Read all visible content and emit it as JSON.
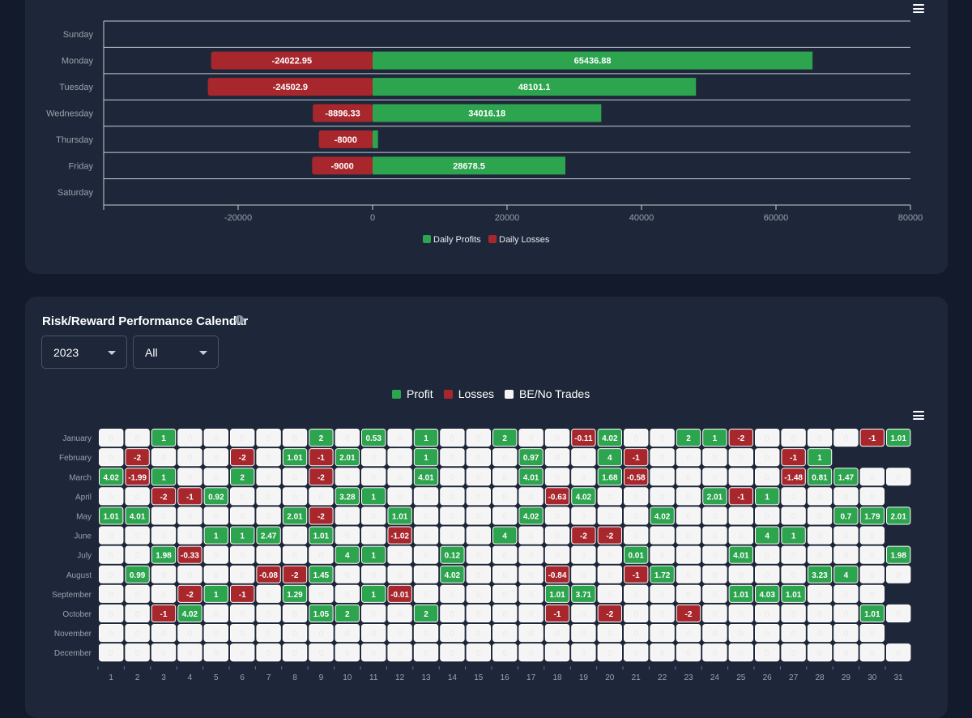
{
  "colors": {
    "profit": "#2da44e",
    "loss": "#a8272d",
    "be": "#f5f5f5",
    "card": "#1e2739",
    "page": "#121a2b"
  },
  "weekday_chart": {
    "menu_icon": "hamburger-menu-icon",
    "chart_data": {
      "type": "bar",
      "orientation": "horizontal",
      "stacked": true,
      "categories": [
        "Sunday",
        "Monday",
        "Tuesday",
        "Wednesday",
        "Thursday",
        "Friday",
        "Saturday"
      ],
      "series": [
        {
          "name": "Daily Profits",
          "values": [
            0,
            65436.88,
            48101.1,
            34016.18,
            800,
            28678.5,
            0
          ],
          "labels": [
            "",
            "65436.88",
            "48101.1",
            "34016.18",
            "",
            "28678.5",
            ""
          ]
        },
        {
          "name": "Daily Losses",
          "values": [
            0,
            -24022.95,
            -24502.9,
            -8896.33,
            -8000,
            -9000,
            0
          ],
          "labels": [
            "",
            "-24022.95",
            "-24502.9",
            "-8896.33",
            "-8000",
            "-9000",
            ""
          ]
        }
      ],
      "xlim": [
        -40000,
        80000
      ],
      "xticks": [
        "-20000",
        "0",
        "20000",
        "40000",
        "60000",
        "80000"
      ],
      "xtick_values": [
        -20000,
        0,
        20000,
        40000,
        60000,
        80000
      ],
      "legend": "bottom",
      "grid": true
    }
  },
  "calendar": {
    "title": "Risk/Reward Performance Calendar",
    "info_icon": "info-icon",
    "year_select": {
      "value": "2023"
    },
    "filter_select": {
      "value": "All"
    },
    "legend": [
      {
        "label": "Profit",
        "color": "#2da44e"
      },
      {
        "label": "Losses",
        "color": "#a8272d"
      },
      {
        "label": "BE/No Trades",
        "color": "#f5f5f5"
      }
    ],
    "menu_icon": "hamburger-menu-icon",
    "chart_data": {
      "type": "heatmap",
      "x": [
        "1",
        "2",
        "3",
        "4",
        "5",
        "6",
        "7",
        "8",
        "9",
        "10",
        "11",
        "12",
        "13",
        "14",
        "15",
        "16",
        "17",
        "18",
        "19",
        "20",
        "21",
        "22",
        "23",
        "24",
        "25",
        "26",
        "27",
        "28",
        "29",
        "30",
        "31"
      ],
      "rows": [
        {
          "month": "January",
          "values": [
            "0",
            "0",
            "1",
            "0",
            "0",
            "0",
            "0",
            "0",
            "2",
            "0",
            "0.53",
            "0",
            "1",
            "0",
            "0",
            "2",
            "0",
            "0",
            "-0.11",
            "4.02",
            "0",
            "0",
            "2",
            "1",
            "-2",
            "0",
            "0",
            "0",
            "0",
            "-1",
            "1.01"
          ]
        },
        {
          "month": "February",
          "values": [
            "0",
            "-2",
            "0",
            "0",
            "0",
            "-2",
            "0",
            "1.01",
            "-1",
            "2.01",
            "0",
            "0",
            "1",
            "0",
            "0",
            "0",
            "0.97",
            "0",
            "0",
            "4",
            "-1",
            "0",
            "0",
            "0",
            "0",
            "0",
            "-1",
            "1"
          ]
        },
        {
          "month": "March",
          "values": [
            "4.02",
            "-1.99",
            "1",
            "0",
            "0",
            "2",
            "0",
            "0",
            "-2",
            "0",
            "0",
            "0",
            "4.01",
            "0",
            "0",
            "0",
            "4.01",
            "0",
            "0",
            "1.68",
            "-0.58",
            "0",
            "0",
            "0",
            "0",
            "0",
            "-1.48",
            "0.81",
            "1.47",
            "0",
            "0"
          ]
        },
        {
          "month": "April",
          "values": [
            "0",
            "0",
            "-2",
            "-1",
            "0.92",
            "0",
            "0",
            "0",
            "0",
            "3.28",
            "1",
            "0",
            "0",
            "0",
            "0",
            "0",
            "0",
            "-0.63",
            "4.02",
            "0",
            "0",
            "0",
            "0",
            "2.01",
            "-1",
            "1",
            "0",
            "0",
            "0",
            "0"
          ]
        },
        {
          "month": "May",
          "values": [
            "1.01",
            "4.01",
            "0",
            "0",
            "0",
            "0",
            "0",
            "2.01",
            "-2",
            "0",
            "0",
            "1.01",
            "0",
            "0",
            "0",
            "0",
            "4.02",
            "0",
            "0",
            "0",
            "0",
            "4.02",
            "0",
            "0",
            "0",
            "0",
            "0",
            "0",
            "0.7",
            "1.79",
            "2.01"
          ]
        },
        {
          "month": "June",
          "values": [
            "0",
            "0",
            "0",
            "0",
            "1",
            "1",
            "2.47",
            "0",
            "1.01",
            "0",
            "0",
            "-1.02",
            "0",
            "0",
            "0",
            "4",
            "0",
            "0",
            "-2",
            "-2",
            "0",
            "0",
            "0",
            "0",
            "0",
            "4",
            "1",
            "0",
            "0",
            "0"
          ]
        },
        {
          "month": "July",
          "values": [
            "0",
            "0",
            "1.98",
            "-0.33",
            "0",
            "0",
            "0",
            "0",
            "0",
            "4",
            "1",
            "0",
            "0",
            "0.12",
            "0",
            "0",
            "0",
            "0",
            "0",
            "0",
            "0.01",
            "0",
            "0",
            "0",
            "4.01",
            "0",
            "0",
            "0",
            "0",
            "0",
            "1.98"
          ]
        },
        {
          "month": "August",
          "values": [
            "0",
            "0.99",
            "0",
            "0",
            "0",
            "0",
            "-0.08",
            "-2",
            "1.45",
            "0",
            "0",
            "0",
            "0",
            "4.02",
            "0",
            "0",
            "0",
            "-0.84",
            "0",
            "0",
            "-1",
            "1.72",
            "0",
            "0",
            "0",
            "0",
            "0",
            "3.23",
            "4",
            "0",
            "0"
          ]
        },
        {
          "month": "September",
          "values": [
            "0",
            "0",
            "0",
            "-2",
            "1",
            "-1",
            "0",
            "1.29",
            "0",
            "0",
            "1",
            "-0.01",
            "0",
            "0",
            "0",
            "0",
            "0",
            "1.01",
            "3.71",
            "0",
            "0",
            "0",
            "0",
            "0",
            "1.01",
            "4.03",
            "1.01",
            "0",
            "0",
            "0"
          ]
        },
        {
          "month": "October",
          "values": [
            "0",
            "0",
            "-1",
            "4.02",
            "0",
            "0",
            "0",
            "0",
            "1.05",
            "2",
            "0",
            "0",
            "2",
            "0",
            "0",
            "0",
            "0",
            "-1",
            "0",
            "-2",
            "0",
            "0",
            "-2",
            "0",
            "0",
            "0",
            "0",
            "0",
            "0",
            "1.01",
            "0"
          ]
        },
        {
          "month": "November",
          "values": [
            "0",
            "0",
            "0",
            "0",
            "0",
            "0",
            "0",
            "0",
            "0",
            "0",
            "0",
            "0",
            "0",
            "0",
            "0",
            "0",
            "0",
            "0",
            "0",
            "0",
            "0",
            "0",
            "0",
            "0",
            "0",
            "0",
            "0",
            "0",
            "0",
            "0"
          ]
        },
        {
          "month": "December",
          "values": [
            "0",
            "0",
            "0",
            "0",
            "0",
            "0",
            "0",
            "0",
            "0",
            "0",
            "0",
            "0",
            "0",
            "0",
            "0",
            "0",
            "0",
            "0",
            "0",
            "0",
            "0",
            "0",
            "0",
            "0",
            "0",
            "0",
            "0",
            "0",
            "0",
            "0",
            "0"
          ]
        }
      ]
    }
  }
}
